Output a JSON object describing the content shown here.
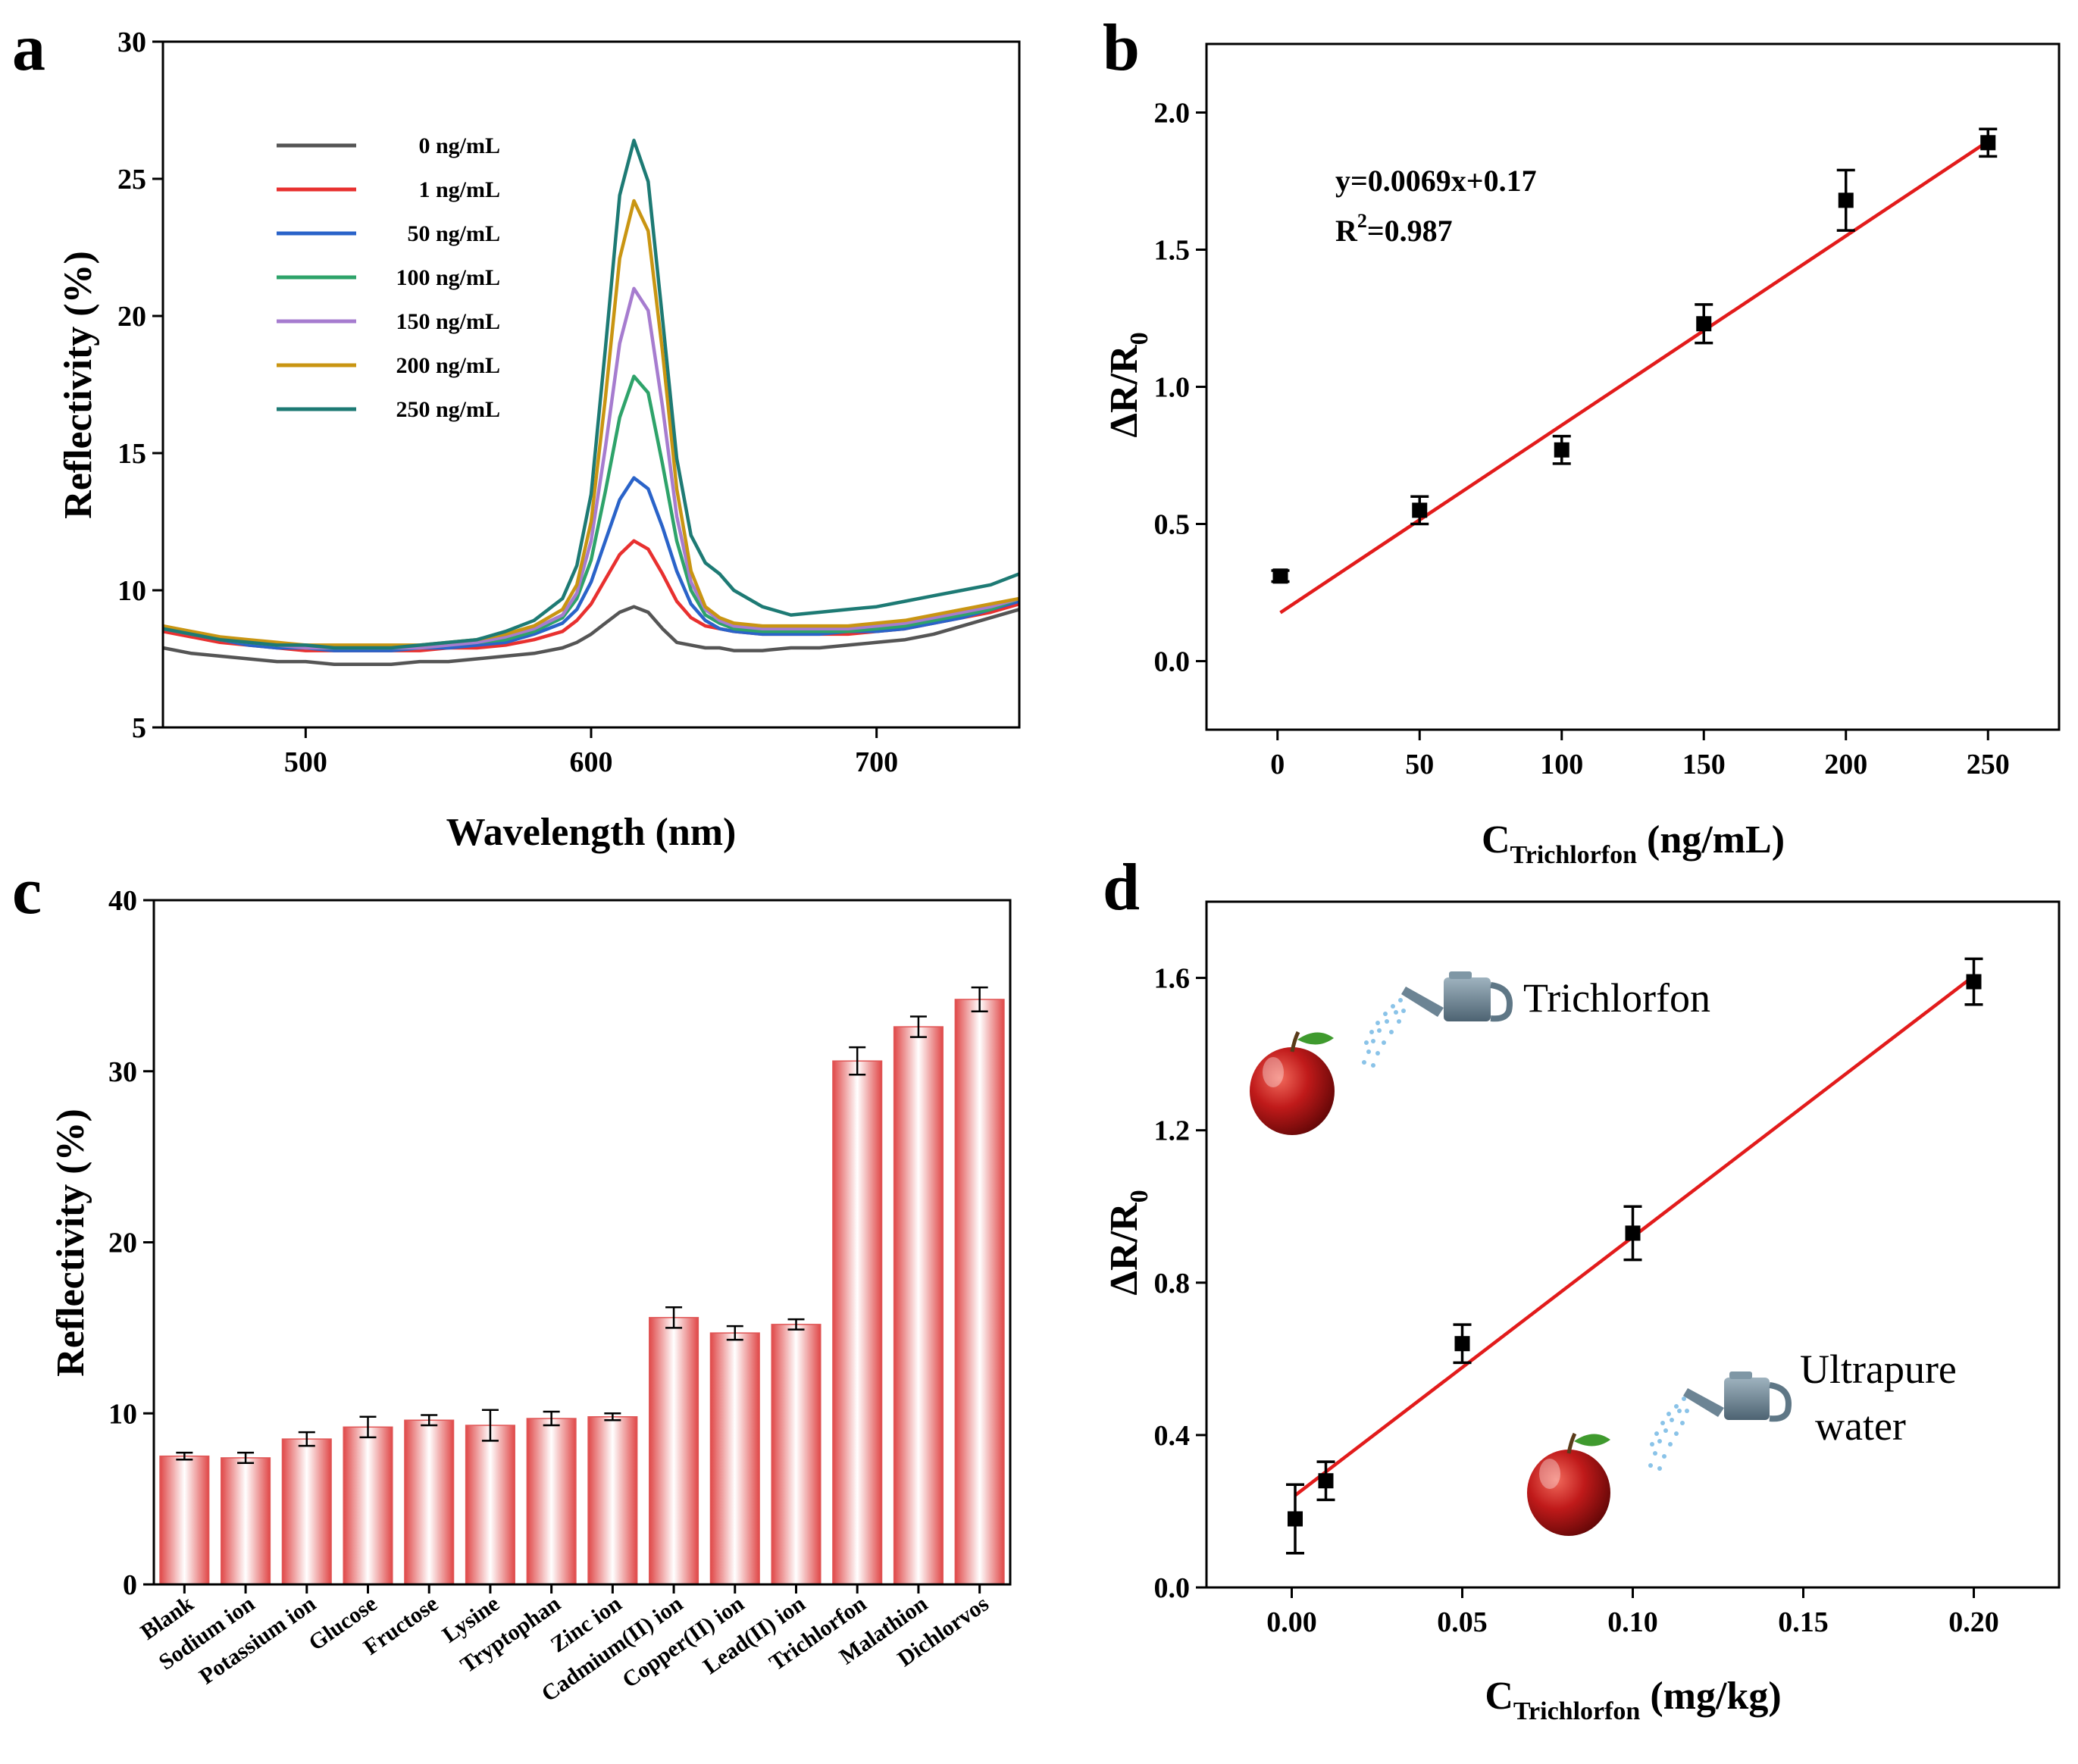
{
  "figure_title": "Reflectivity-based trichlorfon sensing: spectra, calibration, selectivity and apple sample analysis",
  "colors": {
    "0 ng/mL": "#555555",
    "1 ng/mL": "#e8302f",
    "50 ng/mL": "#2a63c9",
    "100 ng/mL": "#2ea36a",
    "150 ng/mL": "#a67ccf",
    "200 ng/mL": "#c99512",
    "250 ng/mL": "#1d7a74",
    "fit": "#e21b1b",
    "bar_edge": "#e05555",
    "bar_center": "#ffffff",
    "marker": "#000000"
  },
  "chart_data": [
    {
      "panel": "a",
      "type": "line",
      "xlabel": "Wavelength (nm)",
      "ylabel": "Reflectivity (%)",
      "xlim": [
        450,
        750
      ],
      "ylim": [
        5,
        30
      ],
      "xticks": [
        500,
        600,
        700
      ],
      "yticks": [
        5,
        10,
        15,
        20,
        25,
        30
      ],
      "x": [
        450,
        460,
        470,
        480,
        490,
        500,
        510,
        520,
        530,
        540,
        550,
        560,
        570,
        580,
        590,
        595,
        600,
        605,
        610,
        615,
        620,
        625,
        630,
        635,
        640,
        645,
        650,
        660,
        670,
        680,
        690,
        700,
        710,
        720,
        730,
        740,
        750
      ],
      "series": [
        {
          "name": "0 ng/mL",
          "values": [
            7.9,
            7.7,
            7.6,
            7.5,
            7.4,
            7.4,
            7.3,
            7.3,
            7.3,
            7.4,
            7.4,
            7.5,
            7.6,
            7.7,
            7.9,
            8.1,
            8.4,
            8.8,
            9.2,
            9.4,
            9.2,
            8.6,
            8.1,
            8.0,
            7.9,
            7.9,
            7.8,
            7.8,
            7.9,
            7.9,
            8.0,
            8.1,
            8.2,
            8.4,
            8.7,
            9.0,
            9.3
          ]
        },
        {
          "name": "1 ng/mL",
          "values": [
            8.5,
            8.3,
            8.1,
            8.0,
            7.9,
            7.8,
            7.8,
            7.8,
            7.8,
            7.8,
            7.9,
            7.9,
            8.0,
            8.2,
            8.5,
            8.9,
            9.5,
            10.4,
            11.3,
            11.8,
            11.5,
            10.6,
            9.6,
            9.0,
            8.7,
            8.6,
            8.5,
            8.4,
            8.4,
            8.4,
            8.4,
            8.5,
            8.6,
            8.8,
            9.0,
            9.2,
            9.5
          ]
        },
        {
          "name": "50 ng/mL",
          "values": [
            8.6,
            8.4,
            8.2,
            8.0,
            7.9,
            7.9,
            7.8,
            7.8,
            7.8,
            7.9,
            7.9,
            8.0,
            8.1,
            8.4,
            8.8,
            9.3,
            10.3,
            11.8,
            13.3,
            14.1,
            13.7,
            12.3,
            10.7,
            9.5,
            8.9,
            8.6,
            8.5,
            8.4,
            8.4,
            8.4,
            8.5,
            8.5,
            8.6,
            8.8,
            9.0,
            9.3,
            9.6
          ]
        },
        {
          "name": "100 ng/mL",
          "values": [
            8.6,
            8.4,
            8.2,
            8.1,
            8.0,
            7.9,
            7.9,
            7.9,
            7.9,
            7.9,
            8.0,
            8.1,
            8.2,
            8.5,
            9.0,
            9.7,
            11.1,
            13.6,
            16.3,
            17.8,
            17.2,
            14.6,
            11.8,
            10.0,
            9.1,
            8.8,
            8.6,
            8.5,
            8.5,
            8.5,
            8.5,
            8.6,
            8.7,
            8.9,
            9.1,
            9.3,
            9.7
          ]
        },
        {
          "name": "150 ng/mL",
          "values": [
            8.6,
            8.4,
            8.2,
            8.1,
            8.0,
            7.9,
            7.9,
            7.9,
            7.9,
            7.9,
            8.0,
            8.1,
            8.3,
            8.6,
            9.1,
            9.9,
            11.8,
            15.2,
            19.0,
            21.0,
            20.2,
            16.7,
            12.7,
            10.3,
            9.3,
            8.9,
            8.7,
            8.6,
            8.6,
            8.6,
            8.6,
            8.7,
            8.8,
            9.0,
            9.2,
            9.4,
            9.7
          ]
        },
        {
          "name": "200 ng/mL",
          "values": [
            8.7,
            8.5,
            8.3,
            8.2,
            8.1,
            8.0,
            8.0,
            8.0,
            8.0,
            8.0,
            8.1,
            8.2,
            8.4,
            8.7,
            9.3,
            10.2,
            12.5,
            17.0,
            22.1,
            24.2,
            23.1,
            18.7,
            13.7,
            10.7,
            9.4,
            9.0,
            8.8,
            8.7,
            8.7,
            8.7,
            8.7,
            8.8,
            8.9,
            9.1,
            9.3,
            9.5,
            9.7
          ]
        },
        {
          "name": "250 ng/mL",
          "values": [
            8.6,
            8.4,
            8.2,
            8.1,
            8.0,
            8.0,
            7.9,
            7.9,
            7.9,
            8.0,
            8.1,
            8.2,
            8.5,
            8.9,
            9.7,
            10.9,
            13.5,
            18.8,
            24.4,
            26.4,
            24.9,
            19.9,
            14.8,
            12.0,
            11.0,
            10.6,
            10.0,
            9.4,
            9.1,
            9.2,
            9.3,
            9.4,
            9.6,
            9.8,
            10.0,
            10.2,
            10.6
          ]
        }
      ]
    },
    {
      "panel": "b",
      "type": "scatter",
      "xlabel_main": "C",
      "xlabel_sub": "Trichlorfon",
      "xlabel_unit": " (ng/mL)",
      "ylabel_main": "ΔR/R",
      "ylabel_sub": "0",
      "xlim": [
        -25,
        275
      ],
      "ylim": [
        -0.25,
        2.25
      ],
      "xticks": [
        0,
        50,
        100,
        150,
        200,
        250
      ],
      "yticks": [
        0.0,
        0.5,
        1.0,
        1.5,
        2.0
      ],
      "ytick_labels": [
        "0.0",
        "0.5",
        "1.0",
        "1.5",
        "2.0"
      ],
      "x": [
        1,
        50,
        100,
        150,
        200,
        250
      ],
      "y": [
        0.31,
        0.55,
        0.77,
        1.23,
        1.68,
        1.89
      ],
      "yerr": [
        0.02,
        0.05,
        0.05,
        0.07,
        0.11,
        0.05
      ],
      "fit": {
        "slope": 0.0069,
        "intercept": 0.17,
        "x_range": [
          1,
          250
        ]
      },
      "equation": "y=0.0069x+0.17",
      "r2_prefix": "R",
      "r2_sup": "2",
      "r2_value": "=0.987"
    },
    {
      "panel": "c",
      "type": "bar",
      "ylabel": "Reflectivity (%)",
      "ylim": [
        0,
        40
      ],
      "yticks": [
        0,
        10,
        20,
        30,
        40
      ],
      "categories": [
        "Blank",
        "Sodium ion",
        "Potassium ion",
        "Glucose",
        "Fructose",
        "Lysine",
        "Tryptophan",
        "Zinc ion",
        "Cadmium(II) ion",
        "Copper(II) ion",
        "Lead(II) ion",
        "Trichlorfon",
        "Malathion",
        "Dichlorvos"
      ],
      "values": [
        7.5,
        7.4,
        8.5,
        9.2,
        9.6,
        9.3,
        9.7,
        9.8,
        15.6,
        14.7,
        15.2,
        30.6,
        32.6,
        34.2
      ],
      "yerr": [
        0.2,
        0.3,
        0.4,
        0.6,
        0.3,
        0.9,
        0.4,
        0.2,
        0.6,
        0.4,
        0.3,
        0.8,
        0.6,
        0.7
      ]
    },
    {
      "panel": "d",
      "type": "scatter",
      "xlabel_main": "C",
      "xlabel_sub": "Trichlorfon",
      "xlabel_unit": " (mg/kg)",
      "ylabel_main": "ΔR/R",
      "ylabel_sub": "0",
      "xlim": [
        -0.025,
        0.225
      ],
      "ylim": [
        0.0,
        1.8
      ],
      "xticks": [
        0.0,
        0.05,
        0.1,
        0.15,
        0.2
      ],
      "xtick_labels": [
        "0.00",
        "0.05",
        "0.10",
        "0.15",
        "0.20"
      ],
      "yticks": [
        0.0,
        0.4,
        0.8,
        1.2,
        1.6
      ],
      "ytick_labels": [
        "0.0",
        "0.4",
        "0.8",
        "1.2",
        "1.6"
      ],
      "x": [
        0.001,
        0.01,
        0.05,
        0.1,
        0.2
      ],
      "y": [
        0.18,
        0.28,
        0.64,
        0.93,
        1.59
      ],
      "yerr": [
        0.09,
        0.05,
        0.05,
        0.07,
        0.06
      ],
      "fit": {
        "slope": 6.85,
        "intercept": 0.235,
        "x_range": [
          0.001,
          0.2
        ]
      },
      "annotations": {
        "top": "Trichlorfon",
        "bottom_line1": "Ultrapure",
        "bottom_line2": "water"
      }
    }
  ],
  "panel_labels": [
    "a",
    "b",
    "c",
    "d"
  ]
}
